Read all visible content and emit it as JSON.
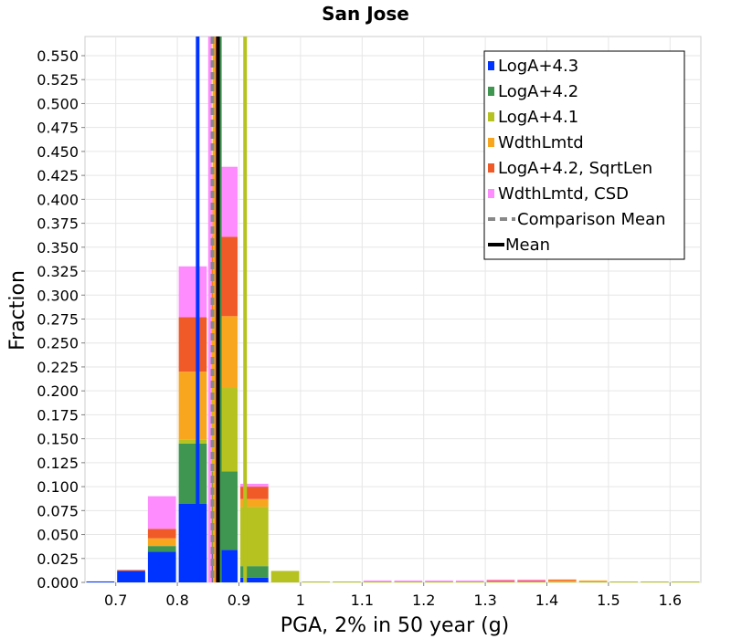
{
  "chart_data": {
    "type": "bar",
    "stacked": true,
    "title": "San Jose",
    "xlabel": "PGA, 2% in 50 year (g)",
    "ylabel": "Fraction",
    "xlim": [
      0.65,
      1.65
    ],
    "ylim": [
      0,
      0.57
    ],
    "bin_width": 0.05,
    "grid": true,
    "legend_position": "top-right",
    "x_ticks": [
      "0.7",
      "0.8",
      "0.9",
      "1",
      "1.1",
      "1.2",
      "1.3",
      "1.4",
      "1.5",
      "1.6"
    ],
    "x_tick_values": [
      0.7,
      0.8,
      0.9,
      1.0,
      1.1,
      1.2,
      1.3,
      1.4,
      1.5,
      1.6
    ],
    "y_ticks": [
      "0.000",
      "0.025",
      "0.050",
      "0.075",
      "0.100",
      "0.125",
      "0.150",
      "0.175",
      "0.200",
      "0.225",
      "0.250",
      "0.275",
      "0.300",
      "0.325",
      "0.350",
      "0.375",
      "0.400",
      "0.425",
      "0.450",
      "0.475",
      "0.500",
      "0.525",
      "0.550"
    ],
    "y_tick_values": [
      0,
      0.025,
      0.05,
      0.075,
      0.1,
      0.125,
      0.15,
      0.175,
      0.2,
      0.225,
      0.25,
      0.275,
      0.3,
      0.325,
      0.35,
      0.375,
      0.4,
      0.425,
      0.45,
      0.475,
      0.5,
      0.525,
      0.55
    ],
    "bin_centers": [
      0.675,
      0.725,
      0.775,
      0.825,
      0.875,
      0.925,
      0.975,
      1.025,
      1.075,
      1.125,
      1.175,
      1.225,
      1.275,
      1.325,
      1.375,
      1.425,
      1.475,
      1.525,
      1.575,
      1.625
    ],
    "series": [
      {
        "name": "LogA+4.3",
        "color": "#0033ff",
        "values": [
          0.001,
          0.012,
          0.032,
          0.082,
          0.034,
          0.005,
          0,
          0,
          0,
          0,
          0,
          0,
          0,
          0,
          0,
          0,
          0,
          0,
          0,
          0
        ]
      },
      {
        "name": "LogA+4.2",
        "color": "#3e9650",
        "values": [
          0,
          0,
          0.006,
          0.063,
          0.082,
          0.012,
          0,
          0,
          0,
          0,
          0,
          0,
          0,
          0,
          0,
          0,
          0,
          0,
          0,
          0
        ]
      },
      {
        "name": "LogA+4.1",
        "color": "#b5c21f",
        "values": [
          0,
          0,
          0,
          0.004,
          0.087,
          0.062,
          0.012,
          0.001,
          0.001,
          0.001,
          0.001,
          0.001,
          0.001,
          0.001,
          0.001,
          0.001,
          0.001,
          0.001,
          0.001,
          0.001
        ]
      },
      {
        "name": "WdthLmtd",
        "color": "#f9a61f",
        "values": [
          0,
          0,
          0.008,
          0.071,
          0.075,
          0.008,
          0,
          0,
          0,
          0,
          0,
          0,
          0,
          0,
          0,
          0.001,
          0.001,
          0,
          0,
          0
        ]
      },
      {
        "name": "LogA+4.2, SqrtLen",
        "color": "#f05a28",
        "values": [
          0,
          0.001,
          0.01,
          0.057,
          0.083,
          0.013,
          0,
          0,
          0,
          0,
          0,
          0,
          0,
          0.001,
          0.001,
          0.001,
          0,
          0,
          0,
          0
        ]
      },
      {
        "name": "WdthLmtd, CSD",
        "color": "#ff8cff",
        "values": [
          0,
          0,
          0.034,
          0.053,
          0.073,
          0.003,
          0,
          0,
          0,
          0.001,
          0.001,
          0.001,
          0.001,
          0.001,
          0.001,
          0,
          0,
          0,
          0,
          0
        ]
      }
    ],
    "vertical_lines": [
      {
        "series": "LogA+4.3",
        "x": 0.833,
        "color": "#0033ff",
        "style": "solid"
      },
      {
        "series": "WdthLmtd, CSD",
        "x": 0.853,
        "color": "#ff8cff",
        "style": "solid"
      },
      {
        "series": "WdthLmtd",
        "x": 0.86,
        "color": "#f9a61f",
        "style": "solid"
      },
      {
        "series": "LogA+4.2, SqrtLen",
        "x": 0.865,
        "color": "#f05a28",
        "style": "solid"
      },
      {
        "series": "LogA+4.2",
        "x": 0.869,
        "color": "#3e9650",
        "style": "solid"
      },
      {
        "series": "LogA+4.1",
        "x": 0.91,
        "color": "#b5c21f",
        "style": "solid"
      },
      {
        "series": "Comparison Mean",
        "x": 0.857,
        "color": "#888888",
        "style": "dashed"
      },
      {
        "series": "Mean",
        "x": 0.866,
        "color": "#000000",
        "style": "solid"
      }
    ],
    "legend": [
      {
        "label": "LogA+4.3",
        "color": "#0033ff",
        "kind": "box"
      },
      {
        "label": "LogA+4.2",
        "color": "#3e9650",
        "kind": "box"
      },
      {
        "label": "LogA+4.1",
        "color": "#b5c21f",
        "kind": "box"
      },
      {
        "label": "WdthLmtd",
        "color": "#f9a61f",
        "kind": "box"
      },
      {
        "label": "LogA+4.2, SqrtLen",
        "color": "#f05a28",
        "kind": "box"
      },
      {
        "label": "WdthLmtd, CSD",
        "color": "#ff8cff",
        "kind": "box"
      },
      {
        "label": "Comparison Mean",
        "color": "#888888",
        "kind": "dashed-line"
      },
      {
        "label": "Mean",
        "color": "#000000",
        "kind": "line"
      }
    ]
  }
}
